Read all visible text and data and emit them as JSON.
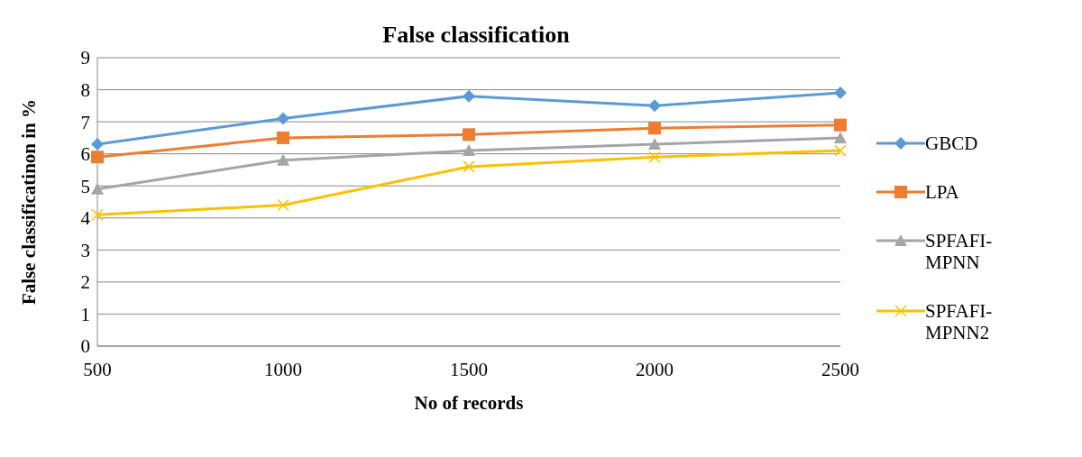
{
  "chart_data": {
    "type": "line",
    "title": "False classification",
    "xlabel": "No of records",
    "ylabel": "False classificatinon in %",
    "categories": [
      "500",
      "1000",
      "1500",
      "2000",
      "2500"
    ],
    "series": [
      {
        "name": "GBCD",
        "color": "#5b9bd5",
        "marker": "diamond",
        "values": [
          6.3,
          7.1,
          7.8,
          7.5,
          7.9
        ]
      },
      {
        "name": "LPA",
        "color": "#ed7d31",
        "marker": "square",
        "values": [
          5.9,
          6.5,
          6.6,
          6.8,
          6.9
        ]
      },
      {
        "name": "SPFAFI-MPNN",
        "color": "#a5a5a5",
        "marker": "triangle",
        "values": [
          4.9,
          5.8,
          6.1,
          6.3,
          6.5
        ]
      },
      {
        "name": "SPFAFI-MPNN2",
        "color": "#ffc000",
        "marker": "cross",
        "values": [
          4.1,
          4.4,
          5.6,
          5.9,
          6.1
        ]
      }
    ],
    "ylim": [
      0,
      9
    ],
    "yticks": [
      0,
      1,
      2,
      3,
      4,
      5,
      6,
      7,
      8,
      9
    ],
    "grid": "y",
    "legend": "right",
    "line_style": "solid"
  }
}
